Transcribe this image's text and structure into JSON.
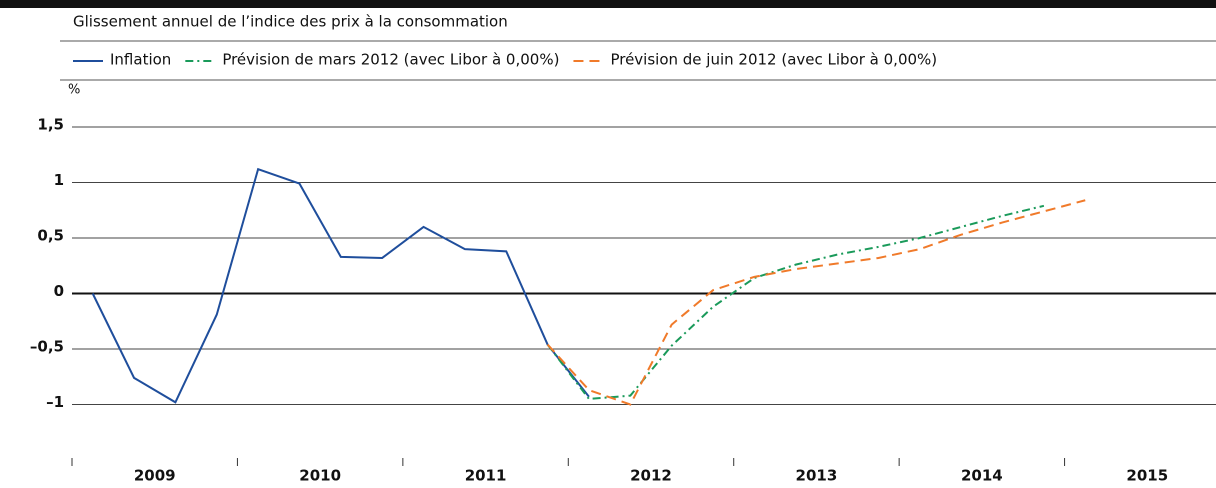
{
  "chart_data": {
    "type": "line",
    "subtitle": "Glissement annuel de l’indice des prix à la consommation",
    "y_unit": "%",
    "xlim": [
      2009,
      2016
    ],
    "xticks": [
      {
        "value": 2009.5,
        "label": "2009"
      },
      {
        "value": 2010.5,
        "label": "2010"
      },
      {
        "value": 2011.5,
        "label": "2011"
      },
      {
        "value": 2012.5,
        "label": "2012"
      },
      {
        "value": 2013.5,
        "label": "2013"
      },
      {
        "value": 2014.5,
        "label": "2014"
      },
      {
        "value": 2015.5,
        "label": "2015"
      }
    ],
    "ylim": [
      -1.5,
      1.5
    ],
    "yticks": [
      {
        "value": 1.5,
        "label": "1,5"
      },
      1,
      {
        "value": 0.5,
        "label": "0,5"
      },
      0,
      {
        "value": -0.5,
        "label": "–0,5"
      },
      {
        "value": -1,
        "label": "–1"
      }
    ],
    "grid": true,
    "series": [
      {
        "name": "Inflation",
        "color": "#1f4e9c",
        "dash": "solid",
        "x": [
          2009.125,
          2009.375,
          2009.625,
          2009.875,
          2010.125,
          2010.375,
          2010.625,
          2010.875,
          2011.125,
          2011.375,
          2011.625,
          2011.875,
          2012.125
        ],
        "values": [
          0,
          -0.76,
          -0.98,
          -0.19,
          1.12,
          0.99,
          0.33,
          0.32,
          0.6,
          0.4,
          0.38,
          -0.46,
          -0.93
        ]
      },
      {
        "name": "Prévision de mars 2012 (avec Libor à 0,00%)",
        "color": "#1a9a5a",
        "dash": "dashdot",
        "x": [
          2011.875,
          2012.125,
          2012.375,
          2012.625,
          2012.875,
          2013.125,
          2013.375,
          2013.625,
          2013.875,
          2014.125,
          2014.375,
          2014.625,
          2014.875
        ],
        "values": [
          -0.46,
          -0.95,
          -0.92,
          -0.47,
          -0.12,
          0.14,
          0.26,
          0.35,
          0.42,
          0.5,
          0.6,
          0.7,
          0.79
        ]
      },
      {
        "name": "Prévision de juin 2012 (avec Libor à 0,00%)",
        "color": "#f07a2a",
        "dash": "dashed",
        "x": [
          2011.875,
          2012.125,
          2012.375,
          2012.625,
          2012.875,
          2013.125,
          2013.375,
          2013.625,
          2013.875,
          2014.125,
          2014.375,
          2014.625,
          2014.875,
          2015.125
        ],
        "values": [
          -0.46,
          -0.87,
          -1.0,
          -0.28,
          0.03,
          0.15,
          0.22,
          0.27,
          0.32,
          0.4,
          0.53,
          0.64,
          0.74,
          0.84
        ]
      }
    ]
  }
}
